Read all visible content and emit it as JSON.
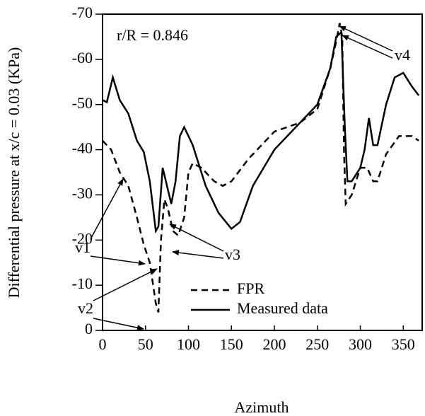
{
  "chart_data": {
    "type": "line",
    "xlabel": "Azimuth",
    "ylabel": "Differential pressure at x/c = 0.03 (KPa)",
    "annotations": [
      "r/R = 0.846",
      "v1",
      "v2",
      "v3",
      "v4"
    ],
    "xlim": [
      0,
      372
    ],
    "ylim": [
      0,
      -70
    ],
    "xticks": [
      0,
      50,
      100,
      150,
      200,
      250,
      300,
      350
    ],
    "yticks": [
      0,
      -10,
      -20,
      -30,
      -40,
      -50,
      -60,
      -70
    ],
    "legend": "lower center",
    "series": [
      {
        "name": "FPR",
        "color": "#000000",
        "dash": "dashed",
        "x": [
          0,
          10,
          20,
          30,
          40,
          48,
          55,
          62,
          65,
          68,
          72,
          76,
          82,
          88,
          95,
          100,
          105,
          115,
          130,
          140,
          150,
          170,
          200,
          230,
          250,
          265,
          272,
          276,
          279,
          281,
          283,
          290,
          300,
          308,
          315,
          320,
          330,
          345,
          360,
          368
        ],
        "values": [
          -42,
          -40,
          -35,
          -32,
          -25,
          -19,
          -15,
          -6,
          -4,
          -20,
          -29,
          -27,
          -22,
          -21,
          -25,
          -35,
          -37,
          -36,
          -33,
          -32,
          -33,
          -38,
          -44,
          -46,
          -49,
          -58,
          -64,
          -68,
          -65,
          -40,
          -28,
          -30,
          -36,
          -36,
          -33,
          -33,
          -39,
          -43,
          -43,
          -42
        ]
      },
      {
        "name": "Measured data",
        "color": "#000000",
        "dash": "solid",
        "x": [
          0,
          5,
          12,
          20,
          30,
          40,
          48,
          55,
          62,
          65,
          70,
          75,
          80,
          85,
          90,
          95,
          105,
          120,
          135,
          150,
          160,
          175,
          200,
          225,
          250,
          265,
          272,
          278,
          282,
          285,
          290,
          300,
          305,
          310,
          315,
          320,
          330,
          340,
          350,
          360,
          368
        ],
        "values": [
          -51,
          -50.5,
          -56,
          -51,
          -48,
          -42,
          -39.5,
          -33,
          -22,
          -23,
          -36,
          -32,
          -28,
          -33,
          -43,
          -45,
          -41,
          -32,
          -26,
          -22.5,
          -24,
          -32,
          -40,
          -45,
          -50,
          -58,
          -65,
          -66,
          -45,
          -33,
          -33,
          -36,
          -40,
          -47,
          -41,
          -41,
          -50,
          -56,
          -57,
          -54,
          -52
        ]
      }
    ]
  }
}
